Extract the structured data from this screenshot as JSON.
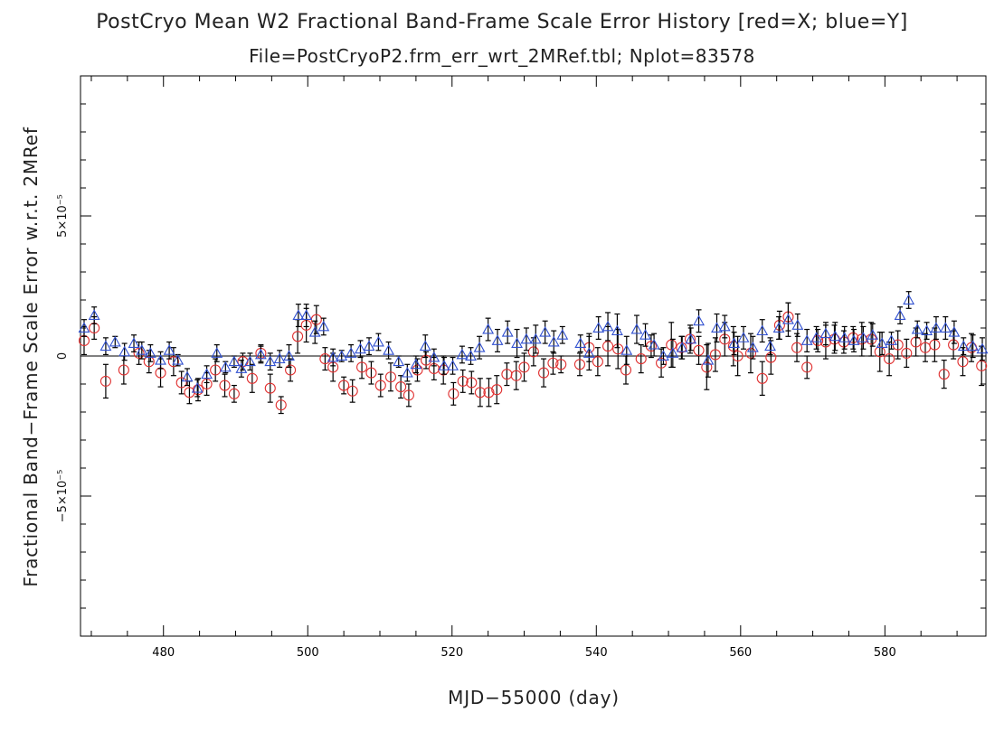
{
  "chart_data": {
    "type": "scatter",
    "title": "PostCryo Mean W2 Fractional Band-Frame Scale Error History [red=X; blue=Y]",
    "subtitle": "File=PostCryoP2.frm_err_wrt_2MRef.tbl; Nplot=83578",
    "xlabel": "MJD−55000 (day)",
    "ylabel": "Fractional Band−Frame Scale Error w.r.t. 2MRef",
    "xlim": [
      468.5,
      594
    ],
    "ylim": [
      -0.0001,
      0.0001
    ],
    "x_ticks": [
      480,
      500,
      520,
      540,
      560,
      580
    ],
    "x_tick_labels": [
      "480",
      "500",
      "520",
      "540",
      "560",
      "580"
    ],
    "y_ticks": [
      -5e-05,
      0,
      5e-05
    ],
    "y_tick_labels": [
      "−5×10⁻⁵",
      "0",
      "5×10⁻⁵"
    ],
    "zero_line": true,
    "grid": false,
    "series": [
      {
        "color": "#e03030",
        "marker": "circle",
        "points": [
          [
            469.0,
            5.5e-06,
            5e-06
          ],
          [
            470.4,
            1e-05,
            4e-06
          ],
          [
            472.0,
            -9e-06,
            6e-06
          ],
          [
            474.5,
            -5e-06,
            5e-06
          ],
          [
            476.6,
            1e-06,
            4e-06
          ],
          [
            478.0,
            -2e-06,
            4e-06
          ],
          [
            479.6,
            -6e-06,
            5e-06
          ],
          [
            481.4,
            -2e-06,
            5e-06
          ],
          [
            482.5,
            -9.5e-06,
            4e-06
          ],
          [
            483.6,
            -1.3e-05,
            4e-06
          ],
          [
            484.8,
            -1.2e-05,
            4e-06
          ],
          [
            486.0,
            -1e-05,
            4e-06
          ],
          [
            487.2,
            -5e-06,
            4e-06
          ],
          [
            488.5,
            -1.05e-05,
            4e-06
          ],
          [
            489.8,
            -1.35e-05,
            3e-06
          ],
          [
            491.0,
            -2e-06,
            3e-06
          ],
          [
            492.3,
            -8e-06,
            5e-06
          ],
          [
            493.5,
            1e-06,
            3e-06
          ],
          [
            494.8,
            -1.15e-05,
            5e-06
          ],
          [
            496.3,
            -1.75e-05,
            3e-06
          ],
          [
            497.6,
            -5e-06,
            4e-06
          ],
          [
            498.6,
            7e-06,
            6e-06
          ],
          [
            499.8,
            1.1e-05,
            6e-06
          ],
          [
            501.2,
            1.3e-05,
            5e-06
          ],
          [
            502.4,
            -1e-06,
            4e-06
          ],
          [
            503.5,
            -4e-06,
            5e-06
          ],
          [
            505.0,
            -1.05e-05,
            3e-06
          ],
          [
            506.2,
            -1.25e-05,
            4e-06
          ],
          [
            507.5,
            -4e-06,
            4e-06
          ],
          [
            508.8,
            -6e-06,
            4e-06
          ],
          [
            510.1,
            -1.05e-05,
            4e-06
          ],
          [
            511.5,
            -7.5e-06,
            5e-06
          ],
          [
            512.9,
            -1.1e-05,
            4e-06
          ],
          [
            514.0,
            -1.4e-05,
            4e-06
          ],
          [
            515.2,
            -5e-06,
            4e-06
          ],
          [
            516.4,
            -1.5e-06,
            3e-06
          ],
          [
            517.5,
            -4.5e-06,
            4e-06
          ],
          [
            518.8,
            -5e-06,
            5e-06
          ],
          [
            520.2,
            -1.35e-05,
            4e-06
          ],
          [
            521.5,
            -9e-06,
            4e-06
          ],
          [
            522.7,
            -9.5e-06,
            4e-06
          ],
          [
            523.9,
            -1.3e-05,
            5e-06
          ],
          [
            525.1,
            -1.3e-05,
            5e-06
          ],
          [
            526.2,
            -1.2e-05,
            5e-06
          ],
          [
            527.6,
            -6.5e-06,
            4e-06
          ],
          [
            528.9,
            -7e-06,
            5e-06
          ],
          [
            530.0,
            -4e-06,
            5e-06
          ],
          [
            531.3,
            1.5e-06,
            5e-06
          ],
          [
            532.7,
            -6e-06,
            5e-06
          ],
          [
            534.0,
            -2.5e-06,
            4e-06
          ],
          [
            535.1,
            -3e-06,
            3e-06
          ],
          [
            537.7,
            -3e-06,
            4e-06
          ],
          [
            539.0,
            3e-06,
            5e-06
          ],
          [
            540.2,
            -2e-06,
            5e-06
          ],
          [
            541.6,
            3.5e-06,
            7e-06
          ],
          [
            543.0,
            2.5e-06,
            7e-06
          ],
          [
            544.1,
            -5e-06,
            5e-06
          ],
          [
            546.2,
            -1e-06,
            5e-06
          ],
          [
            547.6,
            3.5e-06,
            4e-06
          ],
          [
            549.0,
            -2.5e-06,
            5e-06
          ],
          [
            550.4,
            4e-06,
            8e-06
          ],
          [
            551.8,
            3e-06,
            4e-06
          ],
          [
            553.0,
            6e-06,
            5e-06
          ],
          [
            554.2,
            2e-06,
            5e-06
          ],
          [
            555.3,
            -4e-06,
            8e-06
          ],
          [
            556.5,
            5e-07,
            6e-06
          ],
          [
            557.8,
            6e-06,
            6e-06
          ],
          [
            559.0,
            3.5e-06,
            7e-06
          ],
          [
            559.6,
            0.0,
            7e-06
          ],
          [
            561.4,
            1e-06,
            7e-06
          ],
          [
            563.0,
            -8e-06,
            6e-06
          ],
          [
            564.2,
            -5e-07,
            6e-06
          ],
          [
            565.4,
            1.1e-05,
            5e-06
          ],
          [
            566.6,
            1.4e-05,
            5e-06
          ],
          [
            567.8,
            3e-06,
            5e-06
          ],
          [
            569.2,
            -4e-06,
            4e-06
          ],
          [
            570.7,
            5.5e-06,
            4e-06
          ],
          [
            571.8,
            5e-06,
            6e-06
          ],
          [
            573.0,
            6e-06,
            5e-06
          ],
          [
            574.3,
            5e-06,
            4e-06
          ],
          [
            575.6,
            6.5e-06,
            4e-06
          ],
          [
            576.8,
            6e-06,
            6e-06
          ],
          [
            578.1,
            6e-06,
            6e-06
          ],
          [
            579.3,
            1.5e-06,
            7e-06
          ],
          [
            580.6,
            -1e-06,
            6e-06
          ],
          [
            581.8,
            4e-06,
            5e-06
          ],
          [
            583.0,
            1e-06,
            5e-06
          ],
          [
            584.3,
            5e-06,
            5e-06
          ],
          [
            585.6,
            3e-06,
            5e-06
          ],
          [
            586.9,
            4e-06,
            6e-06
          ],
          [
            588.2,
            -6.5e-06,
            5e-06
          ],
          [
            589.5,
            4e-06,
            5e-06
          ],
          [
            590.8,
            -2e-06,
            5e-06
          ],
          [
            592.0,
            3e-06,
            5e-06
          ],
          [
            593.4,
            -3.5e-06,
            7e-06
          ]
        ]
      },
      {
        "color": "#3050d0",
        "marker": "triangle",
        "points": [
          [
            469.0,
            1e-05,
            3e-06
          ],
          [
            470.4,
            1.45e-05,
            3e-06
          ],
          [
            472.0,
            3.5e-06,
            3e-06
          ],
          [
            473.3,
            5e-06,
            2e-06
          ],
          [
            474.6,
            1.5e-06,
            3e-06
          ],
          [
            475.9,
            4.5e-06,
            3e-06
          ],
          [
            477.0,
            2e-06,
            3e-06
          ],
          [
            478.2,
            1e-06,
            3e-06
          ],
          [
            479.6,
            -1.5e-06,
            3e-06
          ],
          [
            480.8,
            2e-06,
            3e-06
          ],
          [
            482.0,
            -1.5e-06,
            2e-06
          ],
          [
            483.3,
            -7.5e-06,
            3e-06
          ],
          [
            484.7,
            -1.15e-05,
            3e-06
          ],
          [
            486.0,
            -6.5e-06,
            3e-06
          ],
          [
            487.4,
            1e-06,
            3e-06
          ],
          [
            488.6,
            -4e-06,
            2e-06
          ],
          [
            489.8,
            -2e-06,
            2e-06
          ],
          [
            490.8,
            -4.5e-06,
            3e-06
          ],
          [
            492.0,
            -2e-06,
            3e-06
          ],
          [
            493.5,
            5e-07,
            3e-06
          ],
          [
            494.8,
            -2e-06,
            3e-06
          ],
          [
            496.1,
            -1e-06,
            3e-06
          ],
          [
            497.4,
            0.0,
            4e-06
          ],
          [
            498.7,
            1.45e-05,
            4e-06
          ],
          [
            499.8,
            1.45e-05,
            4e-06
          ],
          [
            501.0,
            8.5e-06,
            4e-06
          ],
          [
            502.2,
            1.05e-05,
            3e-06
          ],
          [
            503.5,
            -5e-07,
            3e-06
          ],
          [
            504.7,
            0.0,
            2e-06
          ],
          [
            506.0,
            1e-06,
            3e-06
          ],
          [
            507.3,
            2.5e-06,
            3e-06
          ],
          [
            508.5,
            3.5e-06,
            3e-06
          ],
          [
            509.8,
            5e-06,
            3e-06
          ],
          [
            511.2,
            2e-06,
            3e-06
          ],
          [
            512.6,
            -2e-06,
            2e-06
          ],
          [
            513.8,
            -6e-06,
            3e-06
          ],
          [
            515.0,
            -3e-06,
            3e-06
          ],
          [
            516.3,
            3.5e-06,
            4e-06
          ],
          [
            517.5,
            -5e-07,
            3e-06
          ],
          [
            518.9,
            -3.5e-06,
            3e-06
          ],
          [
            520.1,
            -3.5e-06,
            3e-06
          ],
          [
            521.4,
            5e-07,
            3e-06
          ],
          [
            522.6,
            0.0,
            3e-06
          ],
          [
            523.8,
            3e-06,
            4e-06
          ],
          [
            525.0,
            9.5e-06,
            4e-06
          ],
          [
            526.3,
            5.5e-06,
            4e-06
          ],
          [
            527.7,
            8.5e-06,
            4e-06
          ],
          [
            529.0,
            4.5e-06,
            5e-06
          ],
          [
            530.3,
            6e-06,
            4e-06
          ],
          [
            531.6,
            6e-06,
            5e-06
          ],
          [
            532.9,
            8.5e-06,
            4e-06
          ],
          [
            534.1,
            5e-06,
            4e-06
          ],
          [
            535.3,
            7.5e-06,
            3e-06
          ],
          [
            537.8,
            4.5e-06,
            3e-06
          ],
          [
            539.0,
            1e-06,
            6e-06
          ],
          [
            540.3,
            1e-05,
            4e-06
          ],
          [
            541.6,
            1.05e-05,
            5e-06
          ],
          [
            542.9,
            9e-06,
            6e-06
          ],
          [
            544.2,
            2e-06,
            5e-06
          ],
          [
            545.6,
            9.5e-06,
            5e-06
          ],
          [
            546.8,
            7.5e-06,
            4e-06
          ],
          [
            548.0,
            4e-06,
            4e-06
          ],
          [
            549.3,
            0.0,
            3e-06
          ],
          [
            550.6,
            1e-06,
            5e-06
          ],
          [
            551.9,
            3e-06,
            4e-06
          ],
          [
            553.1,
            6e-06,
            4e-06
          ],
          [
            554.2,
            1.25e-05,
            4e-06
          ],
          [
            555.5,
            -1.5e-06,
            6e-06
          ],
          [
            556.7,
            1e-05,
            5e-06
          ],
          [
            557.8,
            1.05e-05,
            4e-06
          ],
          [
            559.1,
            4.5e-06,
            4e-06
          ],
          [
            560.4,
            6.5e-06,
            4e-06
          ],
          [
            561.7,
            3e-06,
            4e-06
          ],
          [
            563.0,
            9e-06,
            4e-06
          ],
          [
            564.1,
            3.5e-06,
            3e-06
          ],
          [
            565.3,
            1e-05,
            4e-06
          ],
          [
            566.6,
            1.3e-05,
            6e-06
          ],
          [
            567.9,
            1.1e-05,
            4e-06
          ],
          [
            569.2,
            5.5e-06,
            4e-06
          ],
          [
            570.5,
            6.5e-06,
            4e-06
          ],
          [
            571.8,
            8e-06,
            4e-06
          ],
          [
            573.1,
            7e-06,
            5e-06
          ],
          [
            574.4,
            6.5e-06,
            4e-06
          ],
          [
            575.7,
            5.5e-06,
            4e-06
          ],
          [
            577.0,
            6.5e-06,
            4e-06
          ],
          [
            578.3,
            7.5e-06,
            4e-06
          ],
          [
            579.6,
            4.5e-06,
            4e-06
          ],
          [
            580.9,
            5.5e-06,
            3e-06
          ],
          [
            582.1,
            1.45e-05,
            3e-06
          ],
          [
            583.3,
            2e-05,
            3e-06
          ],
          [
            584.5,
            9.5e-06,
            3e-06
          ],
          [
            585.8,
            9e-06,
            3e-06
          ],
          [
            587.1,
            1e-05,
            4e-06
          ],
          [
            588.4,
            1e-05,
            4e-06
          ],
          [
            589.6,
            8.5e-06,
            4e-06
          ],
          [
            590.9,
            3.5e-06,
            3e-06
          ],
          [
            592.2,
            3.5e-06,
            4e-06
          ],
          [
            593.5,
            2.5e-06,
            4e-06
          ]
        ]
      }
    ]
  }
}
